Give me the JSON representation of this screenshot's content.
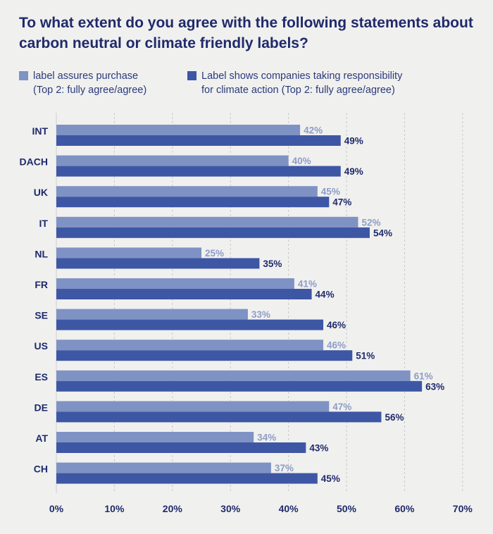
{
  "chart_data": {
    "type": "bar",
    "orientation": "horizontal",
    "title": "To what extent do you agree with the following statements about carbon neutral or climate friendly labels?",
    "categories": [
      "INT",
      "DACH",
      "UK",
      "IT",
      "NL",
      "FR",
      "SE",
      "US",
      "ES",
      "DE",
      "AT",
      "CH"
    ],
    "series": [
      {
        "name": "label assures purchase (Top 2: fully agree/agree)",
        "name_lines": [
          "label assures purchase",
          "(Top 2: fully agree/agree)"
        ],
        "color": "#7f92c4",
        "values": [
          42,
          40,
          45,
          52,
          25,
          41,
          33,
          46,
          61,
          47,
          34,
          37
        ]
      },
      {
        "name": "Label shows companies taking responsibility for climate action (Top 2: fully agree/agree)",
        "name_lines": [
          "Label shows companies taking responsibility",
          "for climate action (Top 2: fully agree/agree)"
        ],
        "color": "#3d57a4",
        "values": [
          49,
          49,
          47,
          54,
          35,
          44,
          46,
          51,
          63,
          56,
          43,
          45
        ]
      }
    ],
    "xlim": [
      0,
      70
    ],
    "xticks": [
      0,
      10,
      20,
      30,
      40,
      50,
      60,
      70
    ],
    "value_suffix": "%",
    "grid": "vertical dashed",
    "legend": "top"
  }
}
